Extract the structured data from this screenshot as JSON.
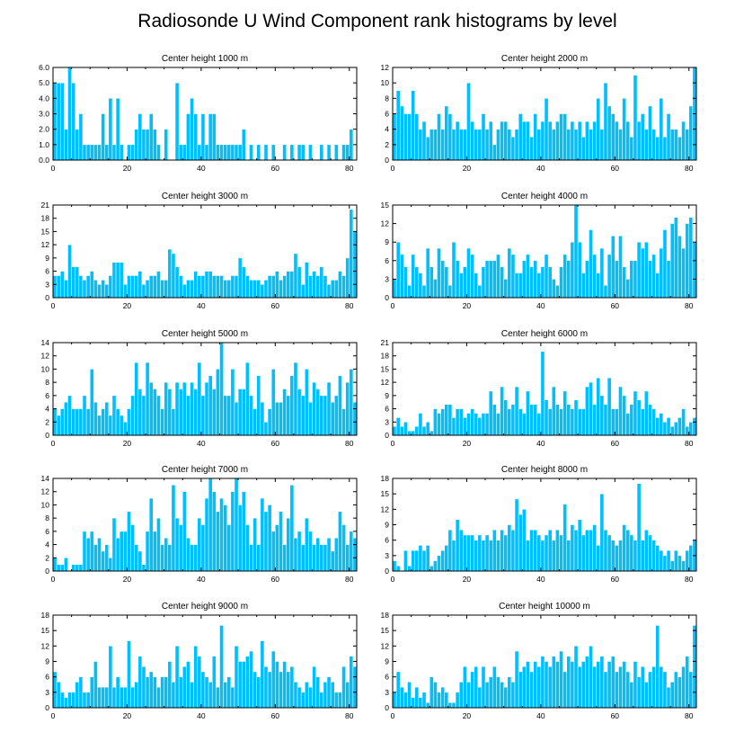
{
  "title": "Radiosonde U Wind Component rank histograms by level",
  "colors": {
    "bar": "#00bfff",
    "axis": "#000000",
    "background": "#ffffff"
  },
  "chart_data": [
    {
      "type": "bar",
      "title": "Center height 1000 m",
      "xlim": [
        0,
        82
      ],
      "ylim": [
        0,
        6
      ],
      "xticks": [
        0,
        20,
        40,
        60,
        80
      ],
      "yticks": [
        0,
        1,
        2,
        3,
        4,
        5,
        6
      ],
      "ytick_labels": [
        "0.0",
        "1.0",
        "2.0",
        "3.0",
        "4.0",
        "5.0",
        "6.0"
      ],
      "values": [
        5,
        5,
        5,
        2,
        6,
        5,
        2,
        3,
        1,
        1,
        1,
        1,
        1,
        3,
        1,
        4,
        1,
        4,
        1,
        0,
        1,
        1,
        2,
        3,
        2,
        2,
        3,
        2,
        1,
        0,
        2,
        0,
        0,
        5,
        1,
        1,
        3,
        4,
        3,
        1,
        3,
        1,
        3,
        3,
        1,
        1,
        1,
        1,
        1,
        1,
        1,
        2,
        0,
        1,
        0,
        1,
        0,
        1,
        0,
        1,
        0,
        0,
        1,
        0,
        1,
        0,
        1,
        1,
        0,
        1,
        0,
        0,
        1,
        0,
        1,
        0,
        1,
        0,
        1,
        1,
        2,
        0
      ]
    },
    {
      "type": "bar",
      "title": "Center height 2000 m",
      "xlim": [
        0,
        82
      ],
      "ylim": [
        0,
        12
      ],
      "xticks": [
        0,
        20,
        40,
        60,
        80
      ],
      "yticks": [
        0,
        2,
        4,
        6,
        8,
        10,
        12
      ],
      "ytick_labels": [
        "0",
        "2",
        "4",
        "6",
        "8",
        "10",
        "12"
      ],
      "values": [
        6,
        9,
        7,
        6,
        6,
        9,
        6,
        4,
        5,
        3,
        4,
        4,
        6,
        4,
        7,
        6,
        4,
        5,
        4,
        4,
        10,
        5,
        4,
        4,
        6,
        4,
        5,
        2,
        4,
        5,
        5,
        4,
        3,
        4,
        6,
        5,
        5,
        3,
        6,
        4,
        5,
        8,
        5,
        4,
        5,
        6,
        6,
        4,
        5,
        4,
        5,
        3,
        5,
        4,
        5,
        8,
        4,
        10,
        7,
        6,
        5,
        4,
        8,
        5,
        3,
        11,
        5,
        6,
        4,
        7,
        4,
        3,
        8,
        3,
        6,
        4,
        4,
        3,
        5,
        4,
        7,
        12
      ]
    },
    {
      "type": "bar",
      "title": "Center height 3000 m",
      "xlim": [
        0,
        82
      ],
      "ylim": [
        0,
        21
      ],
      "xticks": [
        0,
        20,
        40,
        60,
        80
      ],
      "yticks": [
        0,
        3,
        6,
        9,
        12,
        15,
        18,
        21
      ],
      "ytick_labels": [
        "0",
        "3",
        "6",
        "9",
        "12",
        "15",
        "18",
        "21"
      ],
      "values": [
        5,
        5,
        6,
        4,
        12,
        7,
        7,
        5,
        4,
        5,
        6,
        4,
        3,
        4,
        3,
        5,
        8,
        8,
        8,
        3,
        5,
        5,
        5,
        6,
        3,
        4,
        5,
        5,
        6,
        4,
        4,
        11,
        10,
        7,
        5,
        3,
        4,
        4,
        6,
        5,
        5,
        6,
        6,
        5,
        5,
        5,
        4,
        4,
        5,
        5,
        9,
        7,
        5,
        4,
        4,
        4,
        3,
        4,
        5,
        5,
        6,
        4,
        5,
        6,
        6,
        10,
        7,
        3,
        8,
        5,
        6,
        5,
        7,
        5,
        3,
        4,
        4,
        6,
        5,
        9,
        20,
        15
      ]
    },
    {
      "type": "bar",
      "title": "Center height 4000 m",
      "xlim": [
        0,
        82
      ],
      "ylim": [
        0,
        15
      ],
      "xticks": [
        0,
        20,
        40,
        60,
        80
      ],
      "yticks": [
        0,
        3,
        6,
        9,
        12,
        15
      ],
      "ytick_labels": [
        "0",
        "3",
        "6",
        "9",
        "12",
        "15"
      ],
      "values": [
        3,
        9,
        7,
        5,
        2,
        7,
        5,
        4,
        2,
        8,
        5,
        3,
        8,
        6,
        5,
        2,
        9,
        6,
        4,
        5,
        8,
        7,
        4,
        2,
        5,
        6,
        6,
        6,
        7,
        5,
        3,
        8,
        7,
        4,
        4,
        6,
        7,
        5,
        6,
        4,
        5,
        7,
        5,
        3,
        2,
        5,
        7,
        6,
        9,
        15,
        9,
        4,
        6,
        11,
        7,
        4,
        8,
        2,
        7,
        10,
        6,
        10,
        5,
        3,
        6,
        6,
        9,
        8,
        9,
        6,
        7,
        4,
        8,
        11,
        6,
        12,
        13,
        10,
        8,
        12,
        13,
        9
      ]
    },
    {
      "type": "bar",
      "title": "Center height 5000 m",
      "xlim": [
        0,
        82
      ],
      "ylim": [
        0,
        14
      ],
      "xticks": [
        0,
        20,
        40,
        60,
        80
      ],
      "yticks": [
        0,
        2,
        4,
        6,
        8,
        10,
        12,
        14
      ],
      "ytick_labels": [
        "0",
        "2",
        "4",
        "6",
        "8",
        "10",
        "12",
        "14"
      ],
      "values": [
        4,
        3,
        4,
        5,
        6,
        4,
        4,
        4,
        6,
        4,
        10,
        5,
        3,
        4,
        5,
        3,
        6,
        4,
        3,
        2,
        4,
        6,
        11,
        7,
        6,
        11,
        8,
        7,
        6,
        4,
        8,
        7,
        4,
        8,
        7,
        8,
        6,
        8,
        7,
        11,
        6,
        8,
        9,
        7,
        10,
        14,
        6,
        6,
        10,
        5,
        7,
        7,
        11,
        6,
        4,
        9,
        5,
        2,
        4,
        10,
        5,
        5,
        7,
        6,
        9,
        11,
        7,
        6,
        10,
        5,
        8,
        7,
        6,
        6,
        8,
        5,
        6,
        9,
        4,
        8,
        10,
        5
      ]
    },
    {
      "type": "bar",
      "title": "Center height 6000 m",
      "xlim": [
        0,
        82
      ],
      "ylim": [
        0,
        21
      ],
      "xticks": [
        0,
        20,
        40,
        60,
        80
      ],
      "yticks": [
        0,
        3,
        6,
        9,
        12,
        15,
        18,
        21
      ],
      "ytick_labels": [
        "0",
        "3",
        "6",
        "9",
        "12",
        "15",
        "18",
        "21"
      ],
      "values": [
        2,
        4,
        2,
        3,
        1,
        1,
        2,
        5,
        2,
        3,
        1,
        6,
        5,
        6,
        7,
        7,
        4,
        6,
        6,
        4,
        5,
        6,
        5,
        4,
        5,
        5,
        10,
        7,
        5,
        11,
        8,
        6,
        7,
        11,
        6,
        5,
        10,
        7,
        7,
        5,
        19,
        8,
        6,
        11,
        7,
        6,
        10,
        7,
        6,
        8,
        6,
        6,
        11,
        12,
        7,
        13,
        9,
        7,
        13,
        6,
        6,
        11,
        9,
        5,
        7,
        10,
        8,
        6,
        10,
        7,
        6,
        4,
        5,
        3,
        4,
        2,
        3,
        4,
        6,
        2,
        3,
        4
      ]
    },
    {
      "type": "bar",
      "title": "Center height 7000 m",
      "xlim": [
        0,
        82
      ],
      "ylim": [
        0,
        14
      ],
      "xticks": [
        0,
        20,
        40,
        60,
        80
      ],
      "yticks": [
        0,
        2,
        4,
        6,
        8,
        10,
        12,
        14
      ],
      "ytick_labels": [
        "0",
        "2",
        "4",
        "6",
        "8",
        "10",
        "12",
        "14"
      ],
      "values": [
        2,
        1,
        1,
        2,
        0,
        1,
        1,
        1,
        6,
        5,
        6,
        4,
        5,
        3,
        4,
        2,
        8,
        5,
        6,
        6,
        9,
        7,
        4,
        3,
        1,
        6,
        11,
        6,
        8,
        4,
        5,
        4,
        13,
        8,
        7,
        12,
        5,
        4,
        4,
        8,
        7,
        11,
        14,
        12,
        9,
        11,
        10,
        7,
        12,
        14,
        10,
        12,
        7,
        4,
        8,
        4,
        11,
        9,
        10,
        6,
        7,
        9,
        4,
        8,
        13,
        5,
        6,
        4,
        8,
        6,
        4,
        5,
        4,
        4,
        5,
        3,
        5,
        9,
        7,
        4,
        6,
        5
      ]
    },
    {
      "type": "bar",
      "title": "Center height 8000 m",
      "xlim": [
        0,
        82
      ],
      "ylim": [
        0,
        18
      ],
      "xticks": [
        0,
        20,
        40,
        60,
        80
      ],
      "yticks": [
        0,
        3,
        6,
        9,
        12,
        15,
        18
      ],
      "ytick_labels": [
        "0",
        "3",
        "6",
        "9",
        "12",
        "15",
        "18"
      ],
      "values": [
        2,
        1,
        0,
        4,
        1,
        4,
        4,
        5,
        4,
        5,
        1,
        2,
        3,
        4,
        5,
        8,
        6,
        10,
        8,
        7,
        7,
        7,
        6,
        7,
        6,
        7,
        6,
        8,
        6,
        8,
        7,
        9,
        8,
        14,
        11,
        12,
        6,
        8,
        8,
        7,
        6,
        7,
        8,
        6,
        8,
        7,
        13,
        6,
        9,
        8,
        10,
        7,
        8,
        8,
        9,
        5,
        15,
        8,
        7,
        6,
        5,
        6,
        9,
        8,
        7,
        6,
        17,
        6,
        8,
        7,
        6,
        5,
        4,
        3,
        4,
        2,
        4,
        3,
        2,
        4,
        5,
        6
      ]
    },
    {
      "type": "bar",
      "title": "Center height 9000 m",
      "xlim": [
        0,
        82
      ],
      "ylim": [
        0,
        18
      ],
      "xticks": [
        0,
        20,
        40,
        60,
        80
      ],
      "yticks": [
        0,
        3,
        6,
        9,
        12,
        15,
        18
      ],
      "ytick_labels": [
        "0",
        "3",
        "6",
        "9",
        "12",
        "15",
        "18"
      ],
      "values": [
        7,
        5,
        3,
        2,
        3,
        3,
        5,
        6,
        3,
        3,
        6,
        9,
        4,
        4,
        4,
        12,
        4,
        6,
        4,
        4,
        13,
        4,
        5,
        10,
        8,
        6,
        7,
        6,
        4,
        6,
        6,
        9,
        5,
        12,
        6,
        8,
        9,
        5,
        12,
        10,
        7,
        6,
        5,
        10,
        4,
        16,
        5,
        6,
        4,
        12,
        9,
        9,
        10,
        11,
        7,
        6,
        13,
        8,
        7,
        11,
        9,
        7,
        9,
        7,
        8,
        5,
        4,
        3,
        5,
        4,
        8,
        6,
        3,
        5,
        6,
        5,
        3,
        3,
        8,
        5,
        10,
        8
      ]
    },
    {
      "type": "bar",
      "title": "Center height 10000 m",
      "xlim": [
        0,
        82
      ],
      "ylim": [
        0,
        18
      ],
      "xticks": [
        0,
        20,
        40,
        60,
        80
      ],
      "yticks": [
        0,
        3,
        6,
        9,
        12,
        15,
        18
      ],
      "ytick_labels": [
        "0",
        "3",
        "6",
        "9",
        "12",
        "15",
        "18"
      ],
      "values": [
        3,
        7,
        4,
        3,
        5,
        2,
        4,
        2,
        3,
        1,
        6,
        5,
        3,
        4,
        3,
        1,
        1,
        3,
        5,
        8,
        5,
        7,
        8,
        4,
        8,
        5,
        6,
        8,
        6,
        5,
        4,
        6,
        5,
        11,
        7,
        8,
        9,
        7,
        9,
        8,
        10,
        9,
        8,
        10,
        9,
        11,
        7,
        10,
        9,
        12,
        8,
        9,
        10,
        12,
        8,
        9,
        10,
        7,
        9,
        10,
        7,
        8,
        9,
        7,
        5,
        9,
        6,
        8,
        5,
        7,
        8,
        16,
        8,
        7,
        4,
        5,
        7,
        6,
        8,
        10,
        7,
        16
      ]
    }
  ]
}
